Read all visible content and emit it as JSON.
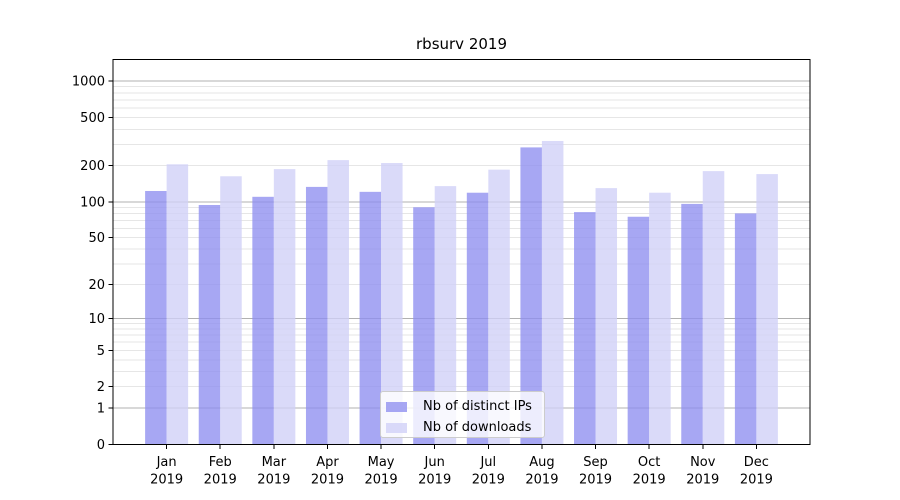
{
  "chart_data": {
    "type": "bar",
    "title": "rbsurv 2019",
    "categories": [
      "Jan",
      "Feb",
      "Mar",
      "Apr",
      "May",
      "Jun",
      "Jul",
      "Aug",
      "Sep",
      "Oct",
      "Nov",
      "Dec"
    ],
    "x_second_line": "2019",
    "series": [
      {
        "name": "Nb of distinct IPs",
        "color": "#8e8ef0",
        "values": [
          123,
          94,
          110,
          133,
          121,
          90,
          119,
          283,
          82,
          75,
          96,
          80
        ]
      },
      {
        "name": "Nb of downloads",
        "color": "#cfcff7",
        "values": [
          205,
          163,
          187,
          222,
          210,
          135,
          185,
          320,
          130,
          119,
          180,
          170
        ]
      }
    ],
    "y_axis": {
      "scale": "log10(1+y)",
      "tick_labels": [
        "0",
        "1",
        "2",
        "5",
        "10",
        "20",
        "50",
        "100",
        "200",
        "500",
        "1000"
      ],
      "tick_values": [
        0,
        1,
        2,
        5,
        10,
        20,
        50,
        100,
        200,
        500,
        1000
      ],
      "major_gridlines": [
        1,
        10,
        100,
        1000
      ],
      "minor_gridlines": [
        2,
        3,
        4,
        5,
        6,
        7,
        8,
        9,
        20,
        30,
        40,
        50,
        60,
        70,
        80,
        90,
        200,
        300,
        400,
        500,
        600,
        700,
        800,
        900
      ],
      "top_value": 1500
    },
    "legend_position": "inside-bottom-center",
    "grid": "horizontal-only"
  },
  "colors": {
    "background": "#ffffff",
    "axis": "#000000",
    "text": "#000000",
    "major_grid": "#b0b0b0",
    "minor_grid": "#e6e6e6",
    "legend_border": "#cccccc"
  }
}
